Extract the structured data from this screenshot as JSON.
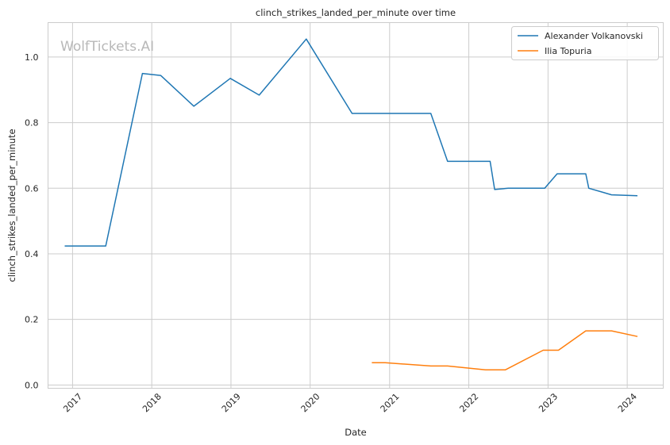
{
  "watermark": "WolfTickets.AI",
  "chart_data": {
    "type": "line",
    "title": "clinch_strikes_landed_per_minute over time",
    "xlabel": "Date",
    "ylabel": "clinch_strikes_landed_per_minute",
    "x_ticks": [
      "2017",
      "2018",
      "2019",
      "2020",
      "2021",
      "2022",
      "2023",
      "2024"
    ],
    "y_ticks": [
      "0.0",
      "0.2",
      "0.4",
      "0.6",
      "0.8",
      "1.0"
    ],
    "xlim": [
      "2016-09-10",
      "2024-06-15"
    ],
    "ylim": [
      -0.01,
      1.105
    ],
    "grid": true,
    "legend_position": "top-right",
    "series": [
      {
        "name": "Alexander Volkanovski",
        "color": "#1f77b4",
        "points": [
          [
            "2016-11-26",
            0.424
          ],
          [
            "2017-06-03",
            0.424
          ],
          [
            "2017-11-19",
            0.95
          ],
          [
            "2018-02-11",
            0.944
          ],
          [
            "2018-07-14",
            0.85
          ],
          [
            "2018-12-29",
            0.935
          ],
          [
            "2019-05-11",
            0.884
          ],
          [
            "2019-12-14",
            1.055
          ],
          [
            "2020-07-12",
            0.828
          ],
          [
            "2021-07-10",
            0.828
          ],
          [
            "2021-09-25",
            0.682
          ],
          [
            "2022-04-09",
            0.682
          ],
          [
            "2022-04-30",
            0.596
          ],
          [
            "2022-07-02",
            0.6
          ],
          [
            "2022-12-17",
            0.6
          ],
          [
            "2023-02-12",
            0.644
          ],
          [
            "2023-06-24",
            0.644
          ],
          [
            "2023-07-08",
            0.6
          ],
          [
            "2023-10-21",
            0.58
          ],
          [
            "2024-02-17",
            0.577
          ]
        ]
      },
      {
        "name": "Ilia Topuria",
        "color": "#ff7f0e",
        "points": [
          [
            "2020-10-11",
            0.068
          ],
          [
            "2020-12-12",
            0.068
          ],
          [
            "2021-07-10",
            0.058
          ],
          [
            "2021-09-25",
            0.058
          ],
          [
            "2022-03-19",
            0.046
          ],
          [
            "2022-06-18",
            0.046
          ],
          [
            "2022-12-10",
            0.106
          ],
          [
            "2023-02-18",
            0.106
          ],
          [
            "2023-06-24",
            0.165
          ],
          [
            "2023-10-21",
            0.165
          ],
          [
            "2024-02-17",
            0.148
          ]
        ]
      }
    ]
  }
}
